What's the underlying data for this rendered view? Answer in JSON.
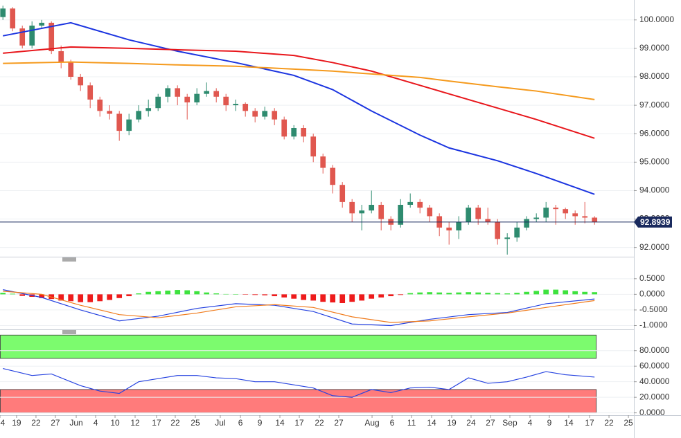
{
  "chart_data": [
    {
      "type": "candlestick",
      "open": [
        100.1,
        100.4,
        99.7,
        99.1,
        99.8,
        99.9,
        98.9,
        98.5,
        98.0,
        97.7,
        97.2,
        96.8,
        96.7,
        96.1,
        96.5,
        96.8,
        96.9,
        97.3,
        97.6,
        97.3,
        97.1,
        97.4,
        97.5,
        97.3,
        97.0,
        97.05,
        96.8,
        96.6,
        96.8,
        96.5,
        95.9,
        96.2,
        95.9,
        95.2,
        94.8,
        94.2,
        93.6,
        93.2,
        93.3,
        93.5,
        93.0,
        92.8,
        93.5,
        93.6,
        93.4,
        93.1,
        92.7,
        92.6,
        92.9,
        93.4,
        93.0,
        92.9,
        92.3,
        92.35,
        92.7,
        93.0,
        93.05,
        93.4,
        93.35,
        93.2,
        93.1,
        93.05
      ],
      "high": [
        100.5,
        100.45,
        99.8,
        99.95,
        100.0,
        99.95,
        99.1,
        98.6,
        98.1,
        97.8,
        97.3,
        97.0,
        96.8,
        96.7,
        97.0,
        97.2,
        97.4,
        97.7,
        97.7,
        97.4,
        97.6,
        97.8,
        97.6,
        97.4,
        97.2,
        97.1,
        96.9,
        96.95,
        96.9,
        96.6,
        96.3,
        96.3,
        96.0,
        95.3,
        94.9,
        94.3,
        93.7,
        93.5,
        94.0,
        93.6,
        93.1,
        93.7,
        93.9,
        93.7,
        93.5,
        93.2,
        92.9,
        93.1,
        93.5,
        93.5,
        93.4,
        93.0,
        92.5,
        92.9,
        93.1,
        93.2,
        93.6,
        93.5,
        93.4,
        93.3,
        93.6,
        93.1
      ],
      "low": [
        100.0,
        99.6,
        99.0,
        99.0,
        99.7,
        98.8,
        98.3,
        97.9,
        97.5,
        96.9,
        96.6,
        96.5,
        95.75,
        95.95,
        96.4,
        96.6,
        96.8,
        97.1,
        97.0,
        96.5,
        97.0,
        97.3,
        97.1,
        96.8,
        96.8,
        96.6,
        96.4,
        96.5,
        96.3,
        95.8,
        95.8,
        95.7,
        95.0,
        94.6,
        93.9,
        93.4,
        92.9,
        92.6,
        93.2,
        92.6,
        92.6,
        92.7,
        93.4,
        93.2,
        92.9,
        92.4,
        92.1,
        92.3,
        92.8,
        92.8,
        92.8,
        92.1,
        91.75,
        92.2,
        92.6,
        92.9,
        92.9,
        92.8,
        93.0,
        92.8,
        92.85,
        92.8
      ],
      "close": [
        100.4,
        99.7,
        99.1,
        99.8,
        99.9,
        98.9,
        98.5,
        98.0,
        97.7,
        97.2,
        96.8,
        96.7,
        96.1,
        96.5,
        96.8,
        96.9,
        97.3,
        97.6,
        97.3,
        97.1,
        97.4,
        97.5,
        97.3,
        97.0,
        97.05,
        96.8,
        96.6,
        96.8,
        96.5,
        95.9,
        96.2,
        95.9,
        95.2,
        94.8,
        94.2,
        93.6,
        93.2,
        93.3,
        93.5,
        93.0,
        92.8,
        93.5,
        93.6,
        93.4,
        93.1,
        92.7,
        92.6,
        92.9,
        93.4,
        93.0,
        92.9,
        92.3,
        92.35,
        92.7,
        93.0,
        93.05,
        93.4,
        93.35,
        93.2,
        93.1,
        93.05,
        92.8939
      ],
      "up_color": "#2e8b6f",
      "down_color": "#e0574f",
      "xlim": [
        -0.3,
        64.7
      ],
      "ylim": [
        91.7,
        100.7
      ],
      "yticks": [
        {
          "value": 92,
          "label": "92.0000"
        },
        {
          "value": 93,
          "label": "93.0000"
        },
        {
          "value": 94,
          "label": "94.0000"
        },
        {
          "value": 95,
          "label": "95.0000"
        },
        {
          "value": 96,
          "label": "96.0000"
        },
        {
          "value": 97,
          "label": "97.0000"
        },
        {
          "value": 98,
          "label": "98.0000"
        },
        {
          "value": 99,
          "label": "99.0000"
        },
        {
          "value": 100,
          "label": "100.0000"
        }
      ],
      "grid": true,
      "last": {
        "value": 92.8939,
        "label": "92.8939",
        "color": "#1a2a5e"
      },
      "series": [
        {
          "color": "#1b34e0",
          "x": [
            0,
            7,
            13,
            18,
            24,
            30,
            34,
            38,
            43,
            46,
            51,
            55,
            61
          ],
          "values": [
            99.44,
            99.9,
            99.3,
            98.9,
            98.5,
            98.05,
            97.55,
            96.8,
            95.95,
            95.5,
            95.05,
            94.6,
            93.87
          ]
        },
        {
          "color": "#e8161b",
          "x": [
            0,
            7,
            13,
            18,
            24,
            30,
            34,
            38,
            43,
            46,
            51,
            55,
            61
          ],
          "values": [
            98.83,
            99.05,
            99.0,
            98.95,
            98.9,
            98.75,
            98.5,
            98.2,
            97.7,
            97.4,
            96.9,
            96.5,
            95.84
          ]
        },
        {
          "color": "#f59a1d",
          "x": [
            0,
            7,
            13,
            18,
            24,
            30,
            34,
            38,
            43,
            46,
            51,
            55,
            61
          ],
          "values": [
            98.47,
            98.52,
            98.47,
            98.42,
            98.37,
            98.27,
            98.2,
            98.1,
            97.98,
            97.85,
            97.65,
            97.5,
            97.2
          ]
        }
      ]
    },
    {
      "type": "macd",
      "histogram": [
        0.05,
        0.02,
        -0.05,
        -0.08,
        -0.12,
        -0.15,
        -0.2,
        -0.22,
        -0.25,
        -0.25,
        -0.22,
        -0.18,
        -0.12,
        -0.06,
        0.03,
        0.08,
        0.1,
        0.12,
        0.14,
        0.13,
        0.1,
        0.06,
        0.03,
        0.01,
        0,
        -0.01,
        -0.02,
        -0.03,
        -0.06,
        -0.1,
        -0.14,
        -0.18,
        -0.2,
        -0.24,
        -0.26,
        -0.28,
        -0.24,
        -0.2,
        -0.14,
        -0.1,
        -0.06,
        -0.02,
        0.04,
        0.06,
        0.07,
        0.06,
        0.05,
        0.06,
        0.07,
        0.06,
        0.05,
        0.04,
        0.03,
        0.05,
        0.08,
        0.11,
        0.15,
        0.15,
        0.13,
        0.1,
        0.08,
        0.07
      ],
      "up_color": "#3ee23e",
      "down_color": "#ee1b1b",
      "xlim": [
        -0.3,
        64.7
      ],
      "ylim": [
        -1.1,
        1.05
      ],
      "yticks": [
        {
          "value": 0.5,
          "label": "0.5000"
        },
        {
          "value": 0,
          "label": "0.0000"
        },
        {
          "value": -0.5,
          "label": "-0.5000"
        },
        {
          "value": -1,
          "label": "-1.0000"
        }
      ],
      "grid": true,
      "series": [
        {
          "color": "#2542e0",
          "x": [
            0,
            4,
            8,
            12,
            16,
            20,
            24,
            28,
            32,
            36,
            40,
            44,
            48,
            52,
            56,
            61
          ],
          "values": [
            0.15,
            -0.1,
            -0.5,
            -0.85,
            -0.7,
            -0.45,
            -0.3,
            -0.35,
            -0.55,
            -0.95,
            -1.0,
            -0.8,
            -0.65,
            -0.58,
            -0.3,
            -0.15
          ]
        },
        {
          "color": "#f07a1a",
          "x": [
            0,
            4,
            8,
            12,
            16,
            20,
            24,
            28,
            32,
            36,
            40,
            44,
            48,
            52,
            56,
            61
          ],
          "values": [
            0.1,
            0.0,
            -0.35,
            -0.65,
            -0.75,
            -0.6,
            -0.4,
            -0.33,
            -0.42,
            -0.72,
            -0.9,
            -0.85,
            -0.72,
            -0.6,
            -0.42,
            -0.2
          ]
        }
      ]
    },
    {
      "type": "rsi",
      "xlim": [
        -0.3,
        64.7
      ],
      "ylim": [
        -3,
        102
      ],
      "yticks": [
        {
          "value": 0,
          "label": "0.0000"
        },
        {
          "value": 20,
          "label": "20.0000"
        },
        {
          "value": 40,
          "label": "40.0000"
        },
        {
          "value": 60,
          "label": "60.0000"
        },
        {
          "value": 80,
          "label": "80.0000"
        }
      ],
      "grid": true,
      "zones": [
        {
          "range": [
            70,
            100
          ],
          "color": "#7cfb6e"
        },
        {
          "range": [
            0,
            30
          ],
          "color": "#ff7b7b"
        }
      ],
      "series": [
        {
          "color": "#2542e0",
          "x": [
            0,
            3,
            5,
            8,
            10,
            12,
            14,
            16,
            18,
            20,
            22,
            24,
            26,
            28,
            30,
            32,
            34,
            36,
            38,
            40,
            42,
            44,
            46,
            48,
            50,
            52,
            54,
            56,
            58,
            61
          ],
          "values": [
            57,
            48,
            50,
            35,
            28,
            25,
            40,
            44,
            48,
            48,
            45,
            44,
            40,
            40,
            36,
            32,
            22,
            20,
            30,
            26,
            32,
            33,
            30,
            45,
            38,
            40,
            46,
            53,
            49,
            46
          ]
        }
      ],
      "xticks": [
        {
          "value": -0.3,
          "label": "4"
        },
        {
          "value": 1.41,
          "label": "19"
        },
        {
          "value": 3.41,
          "label": "22"
        },
        {
          "value": 5.41,
          "label": "27"
        },
        {
          "value": 7.56,
          "label": "Jun"
        },
        {
          "value": 9.56,
          "label": "4"
        },
        {
          "value": 11.56,
          "label": "10"
        },
        {
          "value": 13.63,
          "label": "12"
        },
        {
          "value": 15.84,
          "label": "17"
        },
        {
          "value": 17.77,
          "label": "22"
        },
        {
          "value": 19.84,
          "label": "25"
        },
        {
          "value": 22.41,
          "label": "Jul"
        },
        {
          "value": 24.49,
          "label": "6"
        },
        {
          "value": 26.49,
          "label": "9"
        },
        {
          "value": 28.56,
          "label": "14"
        },
        {
          "value": 30.56,
          "label": "17"
        },
        {
          "value": 32.63,
          "label": "22"
        },
        {
          "value": 34.63,
          "label": "27"
        },
        {
          "value": 38.06,
          "label": "Aug"
        },
        {
          "value": 40.13,
          "label": "6"
        },
        {
          "value": 42.13,
          "label": "11"
        },
        {
          "value": 44.2,
          "label": "14"
        },
        {
          "value": 46.27,
          "label": "19"
        },
        {
          "value": 48.27,
          "label": "24"
        },
        {
          "value": 50.27,
          "label": "27"
        },
        {
          "value": 52.27,
          "label": "Sep"
        },
        {
          "value": 54.34,
          "label": "4"
        },
        {
          "value": 56.34,
          "label": "9"
        },
        {
          "value": 58.34,
          "label": "14"
        },
        {
          "value": 60.49,
          "label": "17"
        },
        {
          "value": 62.49,
          "label": "22"
        },
        {
          "value": 64.49,
          "label": "25"
        }
      ]
    }
  ]
}
